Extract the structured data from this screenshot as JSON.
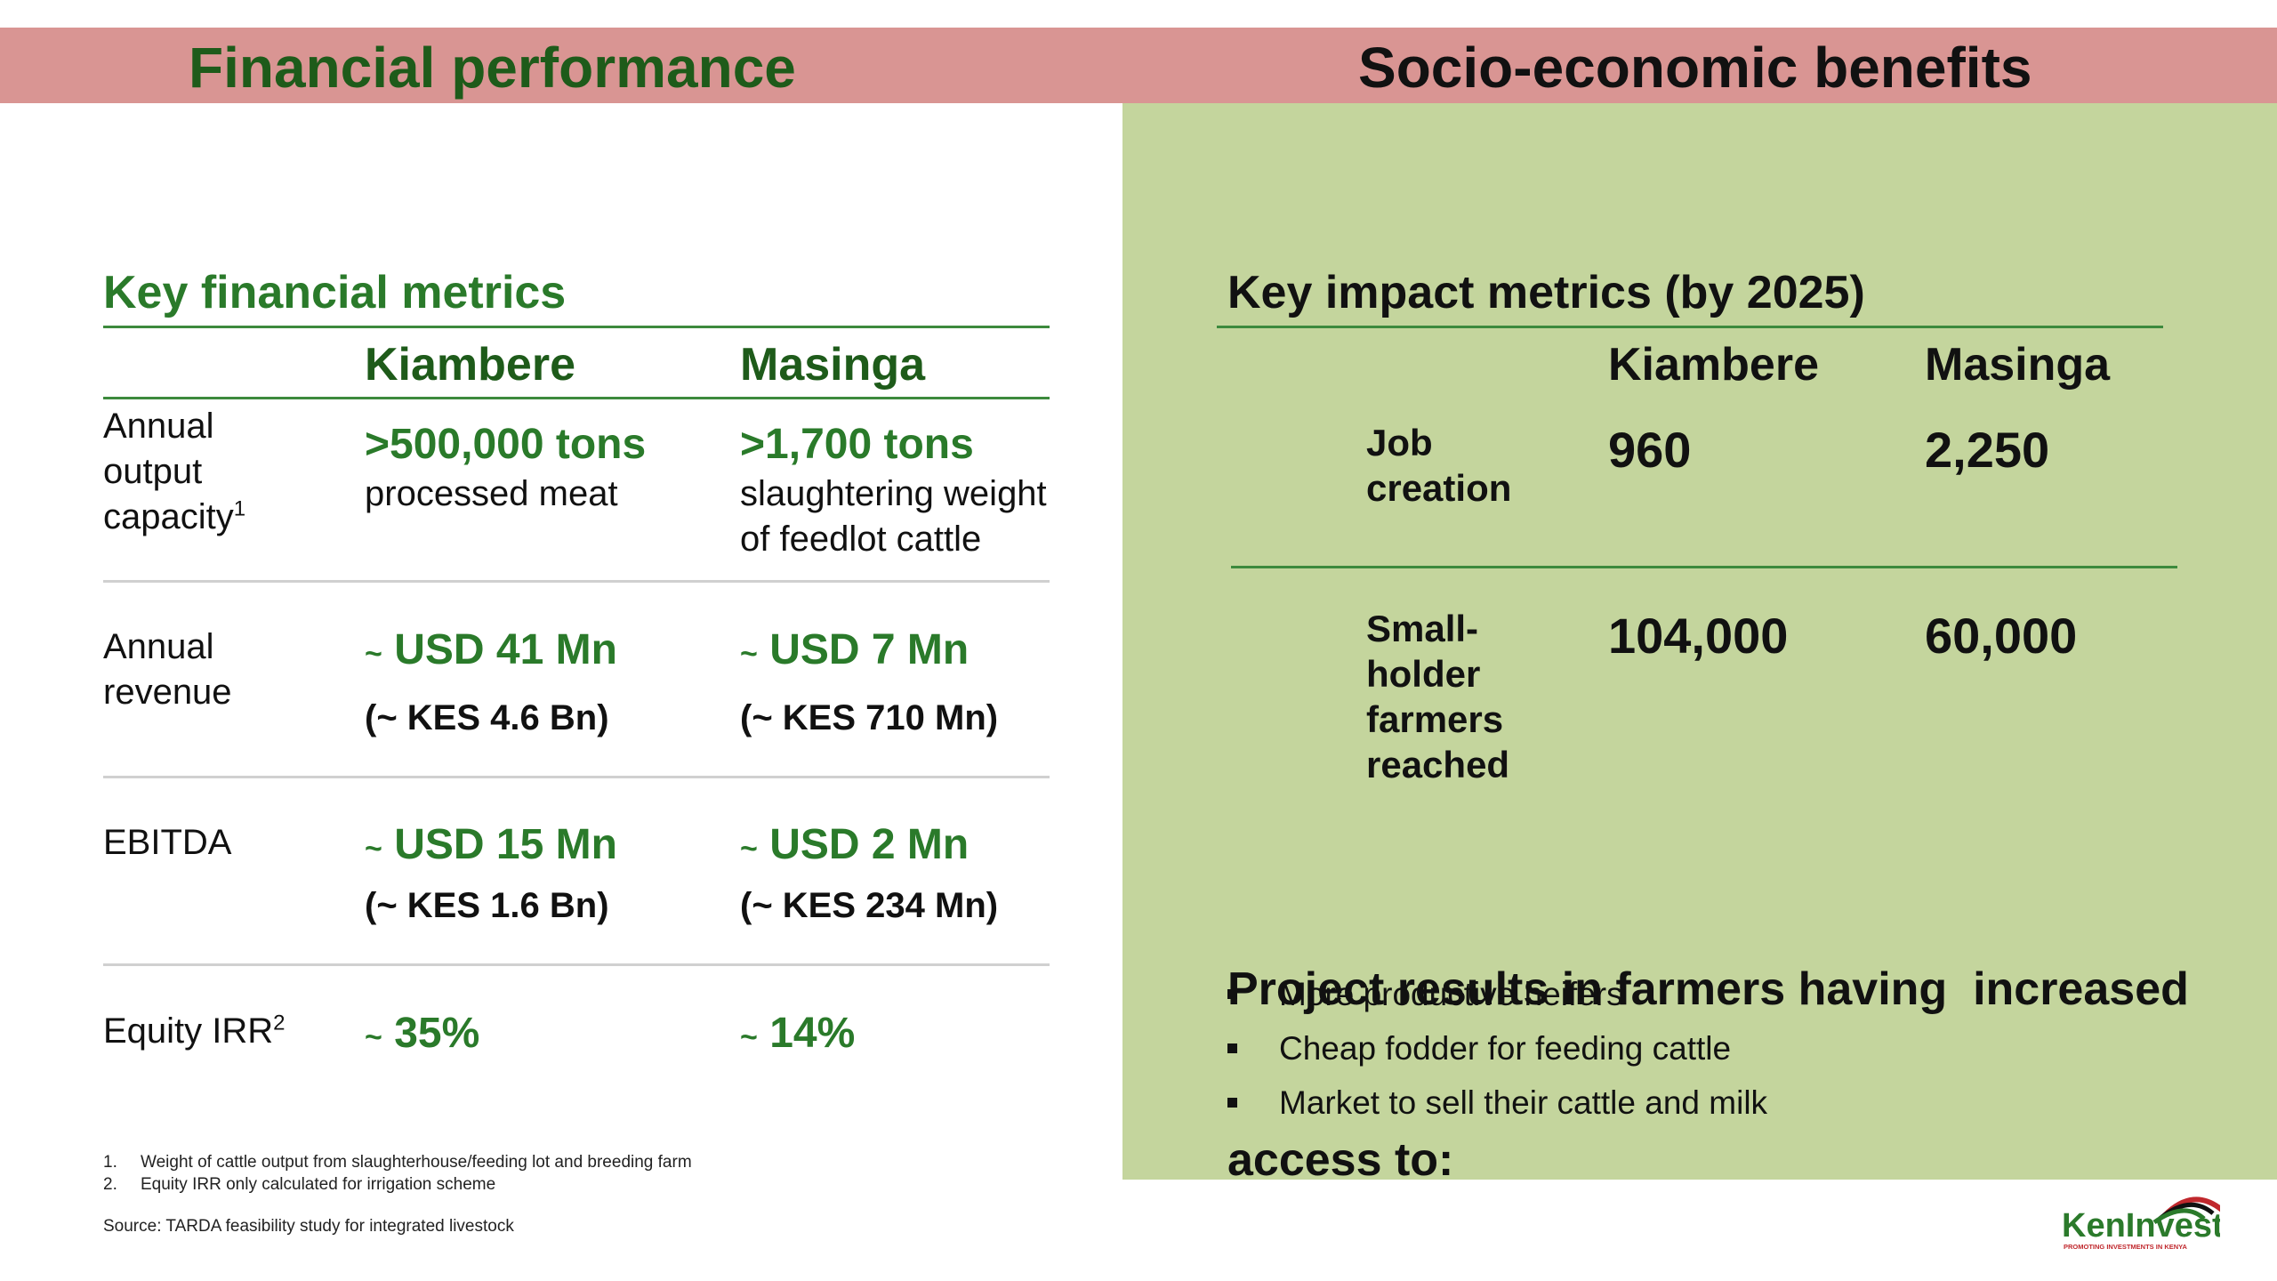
{
  "header": {
    "financial_title": "Financial performance",
    "socio_title": "Socio-economic benefits"
  },
  "financial": {
    "heading": "Key financial metrics",
    "columns": [
      "Kiambere",
      "Masinga"
    ],
    "rows": [
      {
        "label_lines": [
          "Annual",
          "output",
          "capacity"
        ],
        "label_sup": "1",
        "kiambere": {
          "main": ">500,000 tons",
          "sub": "processed meat"
        },
        "masinga": {
          "main": ">1,700 tons",
          "sub_lines": [
            "slaughtering weight",
            "of feedlot cattle"
          ]
        }
      },
      {
        "label_lines": [
          "Annual",
          "revenue"
        ],
        "kiambere": {
          "tilde": "~",
          "main": "USD 41 Mn",
          "kes": "(~ KES 4.6 Bn)"
        },
        "masinga": {
          "tilde": "~",
          "main": "USD 7 Mn",
          "kes": "(~ KES 710 Mn)"
        }
      },
      {
        "label": "EBITDA",
        "kiambere": {
          "tilde": "~",
          "main": "USD 15 Mn",
          "kes": "(~ KES 1.6 Bn)"
        },
        "masinga": {
          "tilde": "~",
          "main": "USD 2 Mn",
          "kes": "(~ KES 234 Mn)"
        }
      },
      {
        "label": "Equity IRR",
        "label_sup": "2",
        "kiambere": {
          "tilde": "~",
          "main": "35%"
        },
        "masinga": {
          "tilde": "~",
          "main": "14%"
        }
      }
    ],
    "footnotes": [
      {
        "num": "1.",
        "text": "Weight of cattle output from slaughterhouse/feeding lot and breeding farm"
      },
      {
        "num": "2.",
        "text": "Equity IRR only calculated for irrigation scheme"
      }
    ],
    "source": "Source: TARDA feasibility study for integrated livestock"
  },
  "impact": {
    "heading": "Key impact metrics (by 2025)",
    "columns": [
      "Kiambere",
      "Masinga"
    ],
    "rows": [
      {
        "label_lines": [
          "Job",
          "creation"
        ],
        "kiambere": "960",
        "masinga": "2,250"
      },
      {
        "label_lines": [
          "Small-",
          "holder",
          "farmers",
          "reached"
        ],
        "kiambere": "104,000",
        "masinga": "60,000"
      }
    ],
    "results_heading_lines": [
      "Project results in farmers having  increased",
      "access to:"
    ],
    "bullets": [
      "More productive heifers",
      "Cheap fodder for feeding cattle",
      "Market to sell their cattle and milk"
    ]
  },
  "logo": {
    "text": "KenInvest",
    "tagline": "PROMOTING INVESTMENTS IN KENYA",
    "colors": {
      "green": "#2b7a2b",
      "red": "#c0282d",
      "black": "#111111"
    }
  }
}
